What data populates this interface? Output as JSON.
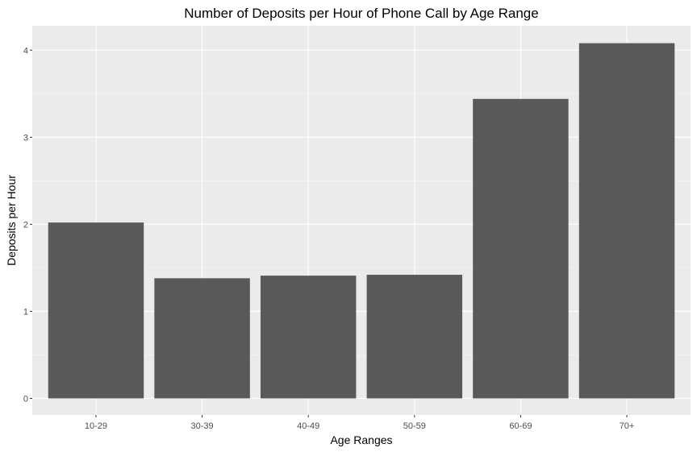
{
  "chart_data": {
    "type": "bar",
    "title": "Number of Deposits per Hour of Phone Call by Age Range",
    "xlabel": "Age Ranges",
    "ylabel": "Deposits per Hour",
    "categories": [
      "10-29",
      "30-39",
      "40-49",
      "50-59",
      "60-69",
      "70+"
    ],
    "values": [
      2.02,
      1.38,
      1.41,
      1.42,
      3.44,
      4.08
    ],
    "ylim": [
      -0.19,
      4.28
    ],
    "yticks": [
      0,
      1,
      2,
      3,
      4
    ],
    "grid": true,
    "colors": {
      "bar": "#595959",
      "panel": "#ebebeb",
      "grid_major": "#ffffff",
      "grid_minor": "#f5f5f5",
      "tick_text": "#4d4d4d"
    }
  }
}
